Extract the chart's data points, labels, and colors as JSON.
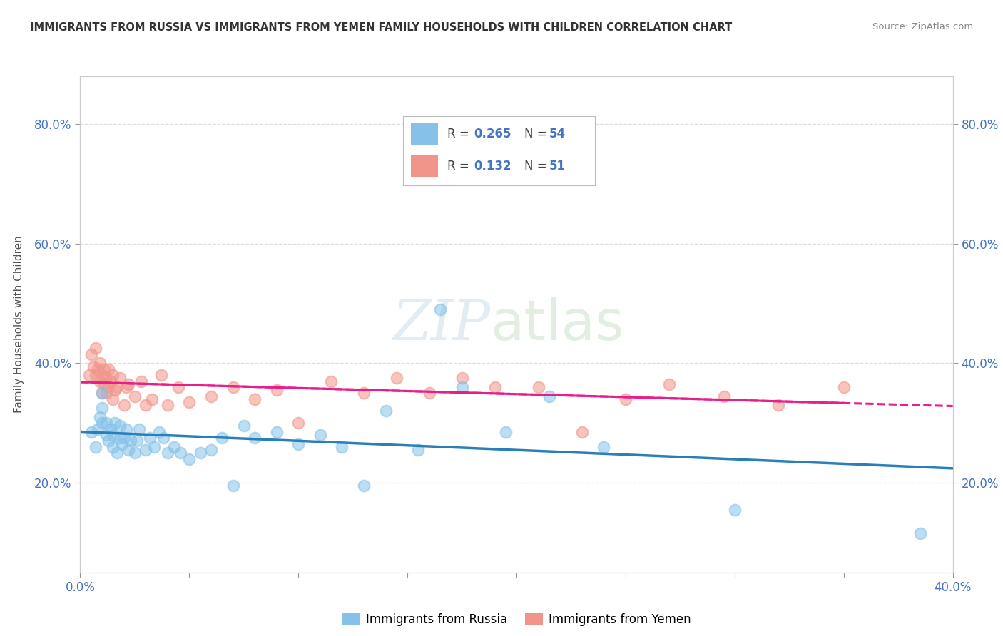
{
  "title": "IMMIGRANTS FROM RUSSIA VS IMMIGRANTS FROM YEMEN FAMILY HOUSEHOLDS WITH CHILDREN CORRELATION CHART",
  "source": "Source: ZipAtlas.com",
  "ylabel": "Family Households with Children",
  "yticks_labels": [
    "20.0%",
    "40.0%",
    "60.0%",
    "80.0%"
  ],
  "ytick_vals": [
    0.2,
    0.4,
    0.6,
    0.8
  ],
  "xlim": [
    0.0,
    0.4
  ],
  "ylim": [
    0.05,
    0.88
  ],
  "legend1_R": "0.265",
  "legend1_N": "54",
  "legend2_R": "0.132",
  "legend2_N": "51",
  "color_russia": "#85c1e9",
  "color_yemen": "#f1948a",
  "color_line_russia": "#2980b9",
  "color_line_yemen": "#e91e8c",
  "russia_x": [
    0.005,
    0.007,
    0.008,
    0.009,
    0.01,
    0.01,
    0.01,
    0.012,
    0.012,
    0.013,
    0.014,
    0.015,
    0.015,
    0.016,
    0.017,
    0.018,
    0.018,
    0.019,
    0.02,
    0.021,
    0.022,
    0.023,
    0.025,
    0.026,
    0.027,
    0.03,
    0.032,
    0.034,
    0.036,
    0.038,
    0.04,
    0.043,
    0.046,
    0.05,
    0.055,
    0.06,
    0.065,
    0.07,
    0.075,
    0.08,
    0.09,
    0.1,
    0.11,
    0.12,
    0.13,
    0.14,
    0.155,
    0.165,
    0.175,
    0.195,
    0.215,
    0.24,
    0.3,
    0.385
  ],
  "russia_y": [
    0.285,
    0.26,
    0.29,
    0.31,
    0.3,
    0.325,
    0.35,
    0.28,
    0.3,
    0.27,
    0.29,
    0.26,
    0.28,
    0.3,
    0.25,
    0.275,
    0.295,
    0.265,
    0.275,
    0.29,
    0.255,
    0.27,
    0.25,
    0.27,
    0.29,
    0.255,
    0.275,
    0.26,
    0.285,
    0.275,
    0.25,
    0.26,
    0.25,
    0.24,
    0.25,
    0.255,
    0.275,
    0.195,
    0.295,
    0.275,
    0.285,
    0.265,
    0.28,
    0.26,
    0.195,
    0.32,
    0.255,
    0.49,
    0.36,
    0.285,
    0.345,
    0.26,
    0.155,
    0.115
  ],
  "yemen_x": [
    0.004,
    0.005,
    0.006,
    0.007,
    0.007,
    0.008,
    0.009,
    0.009,
    0.01,
    0.01,
    0.011,
    0.011,
    0.012,
    0.012,
    0.013,
    0.013,
    0.014,
    0.015,
    0.015,
    0.016,
    0.017,
    0.018,
    0.02,
    0.021,
    0.022,
    0.025,
    0.028,
    0.03,
    0.033,
    0.037,
    0.04,
    0.045,
    0.05,
    0.06,
    0.07,
    0.08,
    0.09,
    0.1,
    0.115,
    0.13,
    0.145,
    0.16,
    0.175,
    0.19,
    0.21,
    0.23,
    0.25,
    0.27,
    0.295,
    0.32,
    0.35
  ],
  "yemen_y": [
    0.38,
    0.415,
    0.395,
    0.38,
    0.425,
    0.39,
    0.4,
    0.37,
    0.35,
    0.38,
    0.365,
    0.39,
    0.35,
    0.375,
    0.36,
    0.39,
    0.37,
    0.34,
    0.38,
    0.355,
    0.36,
    0.375,
    0.33,
    0.36,
    0.365,
    0.345,
    0.37,
    0.33,
    0.34,
    0.38,
    0.33,
    0.36,
    0.335,
    0.345,
    0.36,
    0.34,
    0.355,
    0.3,
    0.37,
    0.35,
    0.375,
    0.35,
    0.375,
    0.36,
    0.36,
    0.285,
    0.34,
    0.365,
    0.345,
    0.33,
    0.36
  ],
  "watermark_zip": "ZIP",
  "watermark_atlas": "atlas",
  "background_color": "#ffffff",
  "grid_color": "#dddddd",
  "axis_color": "#cccccc"
}
